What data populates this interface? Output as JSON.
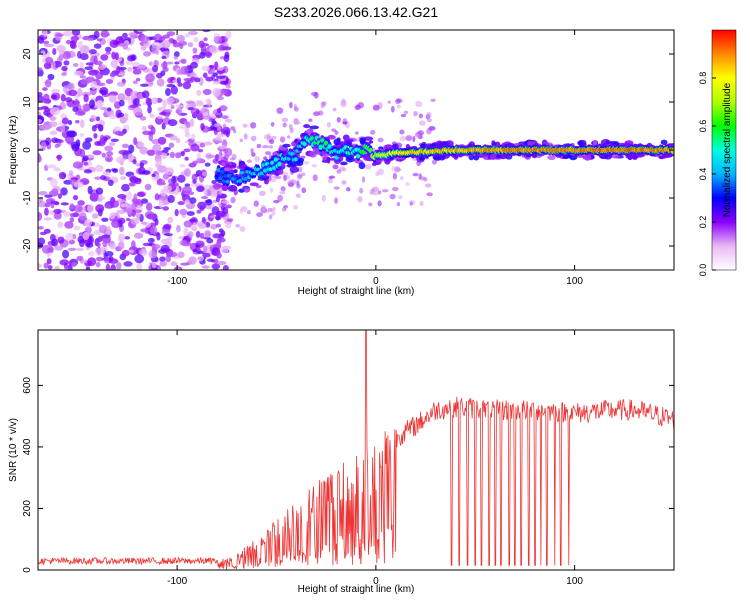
{
  "title": "S233.2026.066.13.42.G21",
  "chart_data": [
    {
      "type": "heatmap",
      "name": "spectrogram",
      "title": "S233.2026.066.13.42.G21",
      "xlabel": "Height of straight line (km)",
      "ylabel": "Frequency (Hz)",
      "xlim": [
        -170,
        150
      ],
      "ylim": [
        -25,
        25
      ],
      "xticks": [
        -100,
        0,
        100
      ],
      "xtick_labels": [
        "-100",
        "0",
        "100"
      ],
      "yticks": [
        -20,
        -10,
        0,
        10,
        20
      ],
      "ytick_labels": [
        "-20",
        "-10",
        "0",
        "10",
        "20"
      ],
      "ridge": {
        "x": [
          -80,
          -70,
          -60,
          -50,
          -40,
          -35,
          -30,
          -25,
          -20,
          -15,
          -10,
          -5,
          0,
          5,
          10,
          20,
          40,
          60,
          80,
          100,
          120,
          150
        ],
        "freq": [
          -5,
          -6,
          -5,
          -2.5,
          -1,
          2,
          2,
          0.5,
          -1,
          0.5,
          -1,
          0,
          -1,
          -1,
          -0.5,
          -0.5,
          0,
          0,
          0,
          0,
          0,
          0
        ],
        "amplitude": [
          0.35,
          0.4,
          0.45,
          0.5,
          0.45,
          0.5,
          0.55,
          0.55,
          0.45,
          0.5,
          0.5,
          0.6,
          0.7,
          0.75,
          0.8,
          0.85,
          0.85,
          0.9,
          0.9,
          0.9,
          0.92,
          0.9
        ]
      },
      "noise_region_x": [
        -170,
        -80
      ],
      "colorbar": {
        "label": "Normalized spectral amplitude",
        "range": [
          0,
          1
        ],
        "ticks": [
          0.0,
          0.2,
          0.4,
          0.6,
          0.8
        ],
        "tick_labels": [
          "0.0",
          "0.2",
          "0.4",
          "0.6",
          "0.8"
        ]
      }
    },
    {
      "type": "line",
      "name": "snr",
      "xlabel": "Height of straight line (km)",
      "ylabel": "SNR (10 * v/v)",
      "xlim": [
        -170,
        150
      ],
      "ylim": [
        0,
        780
      ],
      "xticks": [
        -100,
        0,
        100
      ],
      "xtick_labels": [
        "-100",
        "0",
        "100"
      ],
      "yticks": [
        0,
        200,
        400,
        600
      ],
      "ytick_labels": [
        "0",
        "200",
        "400",
        "600"
      ],
      "color": "#ee3333",
      "envelope": {
        "x": [
          -170,
          -80,
          -70,
          -60,
          -50,
          -40,
          -30,
          -20,
          -10,
          0,
          10,
          20,
          30,
          40,
          60,
          80,
          100,
          120,
          130,
          150
        ],
        "snr": [
          25,
          25,
          40,
          90,
          140,
          180,
          230,
          280,
          310,
          340,
          430,
          470,
          520,
          530,
          520,
          520,
          510,
          520,
          520,
          490
        ]
      },
      "spike": {
        "x": -5,
        "snr": 780
      },
      "dropout_x": [
        38,
        42,
        46,
        50,
        53,
        57,
        60,
        63,
        67,
        70,
        73,
        77,
        80,
        83,
        86,
        90,
        93,
        97
      ]
    }
  ]
}
